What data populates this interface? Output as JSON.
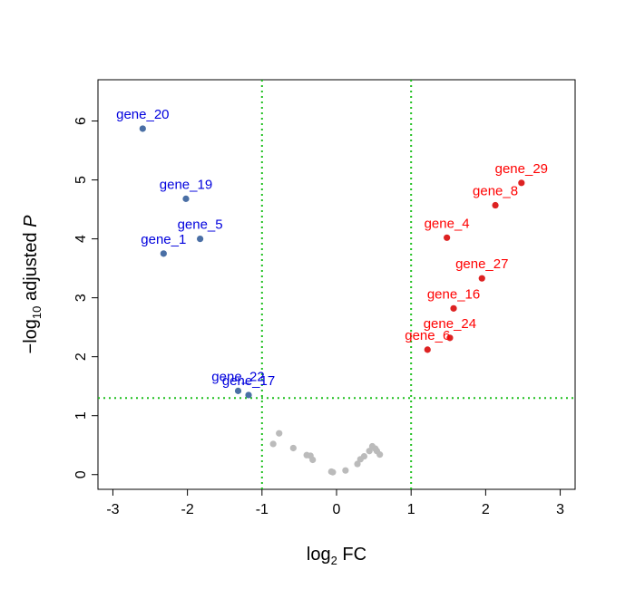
{
  "chart_data": {
    "type": "scatter",
    "title": "",
    "xlabel": {
      "prefix": "log",
      "sub": "2",
      "suffix": " FC"
    },
    "ylabel": {
      "prefix": "−log",
      "sub": "10",
      "suffix": " adjusted ",
      "italic": "P"
    },
    "xlim": [
      -3.2,
      3.2
    ],
    "ylim": [
      -0.25,
      6.7
    ],
    "xticks": [
      -3,
      -2,
      -1,
      0,
      1,
      2,
      3
    ],
    "yticks": [
      0,
      1,
      2,
      3,
      4,
      5,
      6
    ],
    "grid": false,
    "thresholds": {
      "x": [
        -1,
        1
      ],
      "y": 1.3,
      "color": "#1fbf1f"
    },
    "colors": {
      "down": "#4a6fa5",
      "down_label": "#0000dd",
      "up": "#dd2222",
      "up_label": "#ff0000",
      "ns": "#bbbbbb"
    },
    "series": [
      {
        "group": "down",
        "points": [
          {
            "x": -2.6,
            "y": 5.87,
            "label": "gene_20"
          },
          {
            "x": -2.02,
            "y": 4.68,
            "label": "gene_19"
          },
          {
            "x": -1.83,
            "y": 4.0,
            "label": "gene_5"
          },
          {
            "x": -2.32,
            "y": 3.75,
            "label": "gene_1"
          },
          {
            "x": -1.32,
            "y": 1.42,
            "label": "gene_22"
          },
          {
            "x": -1.18,
            "y": 1.35,
            "label": "gene_17"
          }
        ]
      },
      {
        "group": "up",
        "points": [
          {
            "x": 2.48,
            "y": 4.95,
            "label": "gene_29"
          },
          {
            "x": 2.13,
            "y": 4.57,
            "label": "gene_8"
          },
          {
            "x": 1.48,
            "y": 4.02,
            "label": "gene_4"
          },
          {
            "x": 1.95,
            "y": 3.33,
            "label": "gene_27"
          },
          {
            "x": 1.57,
            "y": 2.82,
            "label": "gene_16"
          },
          {
            "x": 1.52,
            "y": 2.32,
            "label": "gene_24"
          },
          {
            "x": 1.22,
            "y": 2.12,
            "label": "gene_6"
          }
        ]
      },
      {
        "group": "ns",
        "points": [
          {
            "x": -0.85,
            "y": 0.52
          },
          {
            "x": -0.77,
            "y": 0.7
          },
          {
            "x": -0.58,
            "y": 0.45
          },
          {
            "x": -0.4,
            "y": 0.33
          },
          {
            "x": -0.35,
            "y": 0.32
          },
          {
            "x": -0.32,
            "y": 0.25
          },
          {
            "x": -0.07,
            "y": 0.05
          },
          {
            "x": -0.05,
            "y": 0.04
          },
          {
            "x": 0.12,
            "y": 0.07
          },
          {
            "x": 0.28,
            "y": 0.18
          },
          {
            "x": 0.32,
            "y": 0.26
          },
          {
            "x": 0.37,
            "y": 0.31
          },
          {
            "x": 0.44,
            "y": 0.4
          },
          {
            "x": 0.48,
            "y": 0.48
          },
          {
            "x": 0.52,
            "y": 0.44
          },
          {
            "x": 0.54,
            "y": 0.4
          },
          {
            "x": 0.58,
            "y": 0.34
          }
        ]
      }
    ]
  }
}
